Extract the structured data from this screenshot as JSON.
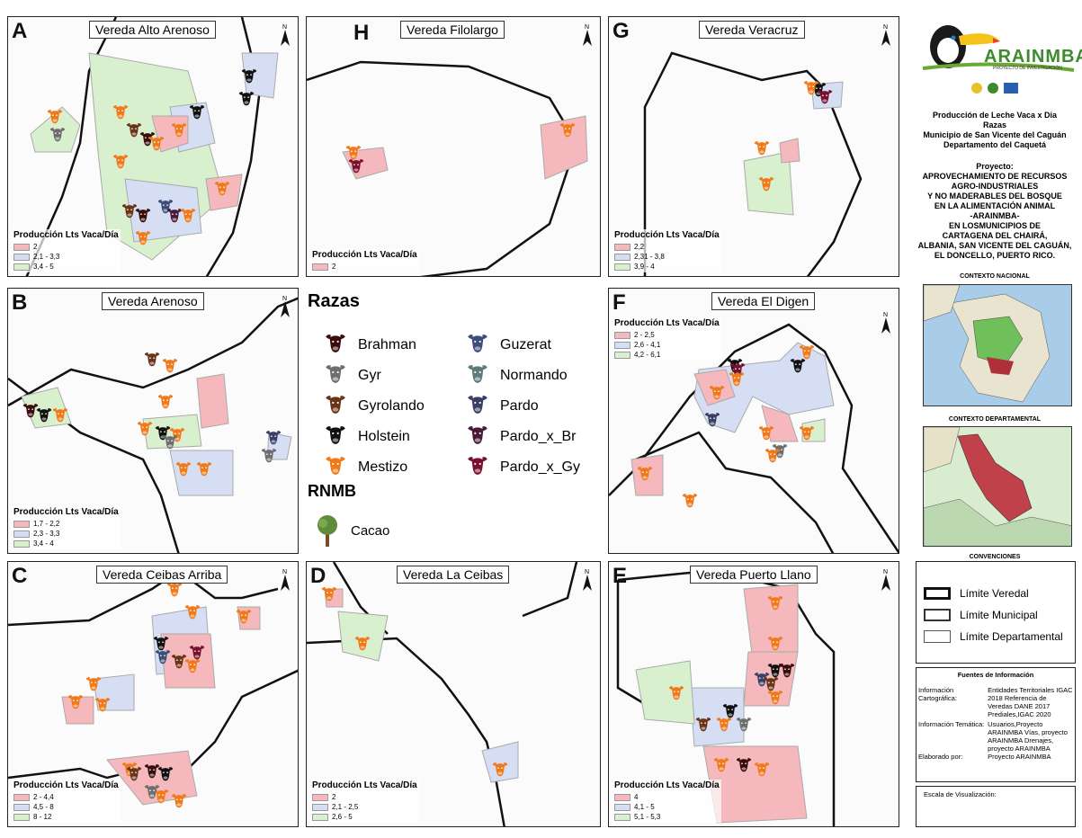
{
  "panels": [
    {
      "label": "A",
      "title": "Vereda Alto Arenoso",
      "legend_title": "Producción Lts Vaca/Día",
      "legend": [
        "2",
        "2,1 - 3,3",
        "3,4 - 5"
      ]
    },
    {
      "label": "H",
      "title": "Vereda Filolargo",
      "legend_title": "Producción Lts Vaca/Día",
      "legend": [
        "2"
      ]
    },
    {
      "label": "G",
      "title": "Vereda Veracruz",
      "legend_title": "Producción Lts Vaca/Día",
      "legend": [
        "2,2",
        "2,31 - 3,8",
        "3,9 - 4"
      ]
    },
    {
      "label": "B",
      "title": "Vereda Arenoso",
      "legend_title": "Producción Lts Vaca/Día",
      "legend": [
        "1,7 - 2,2",
        "2,3 - 3,3",
        "3,4 - 4"
      ]
    },
    {
      "label": "F",
      "title": "Vereda El Digen",
      "legend_title": "Producción Lts Vaca/Día",
      "legend": [
        "2 - 2,5",
        "2,6 - 4,1",
        "4,2 - 6,1"
      ]
    },
    {
      "label": "C",
      "title": "Vereda Ceibas Arriba",
      "legend_title": "Producción Lts Vaca/Día",
      "legend": [
        "2 - 4,4",
        "4,5 - 8",
        "8 - 12"
      ]
    },
    {
      "label": "D",
      "title": "Vereda La Ceibas",
      "legend_title": "Producción Lts Vaca/Día",
      "legend": [
        "2",
        "2,1 - 2,5",
        "2,6 - 5"
      ]
    },
    {
      "label": "E",
      "title": "Vereda Puerto Llano",
      "legend_title": "Producción Lts Vaca/Día",
      "legend": [
        "4",
        "4,1 - 5",
        "5,1 - 5,3"
      ]
    }
  ],
  "legend_colors": [
    "#f4b8bd",
    "#d5def2",
    "#d9f0cf"
  ],
  "north_label": "N",
  "razas": {
    "title": "Razas",
    "items": [
      {
        "name": "Brahman",
        "color": "#3a0d0d"
      },
      {
        "name": "Gyr",
        "color": "#6e6e6e"
      },
      {
        "name": "Gyrolando",
        "color": "#6b3418"
      },
      {
        "name": "Holstein",
        "color": "#111111"
      },
      {
        "name": "Mestizo",
        "color": "#f07a1a"
      },
      {
        "name": "Guzerat",
        "color": "#3b4f7a"
      },
      {
        "name": "Normando",
        "color": "#5f7a7a"
      },
      {
        "name": "Pardo",
        "color": "#3a3f66"
      },
      {
        "name": "Pardo_x_Br",
        "color": "#4a1a3a"
      },
      {
        "name": "Pardo_x_Gy",
        "color": "#7a1030"
      }
    ],
    "rnmb_title": "RNMB",
    "rnmb_item": "Cacao"
  },
  "sidebar": {
    "logo_text": "ARAINMBA",
    "logo_sub": "PROYECTO DE INVESTIGACIÓN",
    "title_lines": [
      "Producción de Leche Vaca x Dia",
      "Razas",
      "Municipio de San Vicente del Caguán",
      "Departamento del Caquetá"
    ],
    "project_lines": [
      "Proyecto:",
      "APROVECHAMIENTO DE RECURSOS",
      "AGRO-INDUSTRIALES",
      "Y NO MADERABLES DEL BOSQUE",
      "EN LA ALIMENTACIÓN ANIMAL",
      "-ARAINMBA-",
      "EN LOSMUNICIPIOS DE",
      "CARTAGENA DEL CHAIRÁ,",
      "ALBANIA, SAN VICENTE DEL CAGUÁN,",
      "EL DONCELLO, PUERTO RICO."
    ],
    "contexto_nacional": "CONTEXTO NACIONAL",
    "contexto_departamental": "CONTEXTO DEPARTAMENTAL",
    "convenciones": "CONVENCIONES",
    "conv_items": [
      "Límite Veredal",
      "Límite Municipal",
      "Límite Departamental"
    ],
    "fuentes_title": "Fuentes de Información",
    "fuentes": [
      {
        "k": "Información Cartográfica:",
        "v": "Entidades Territoriales IGAC 2018 Referencia de Veredas DANE 2017 Prediales,IGAC 2020"
      },
      {
        "k": "Información Temática:",
        "v": "Usuarios,Proyecto ARAINMBA Vías, proyecto ARAINMBA Drenajes, proyecto ARAINMBA"
      },
      {
        "k": "Elaborado por:",
        "v": "Proyecto ARAINMBA"
      }
    ],
    "escala": "Escala de Visualización:"
  }
}
